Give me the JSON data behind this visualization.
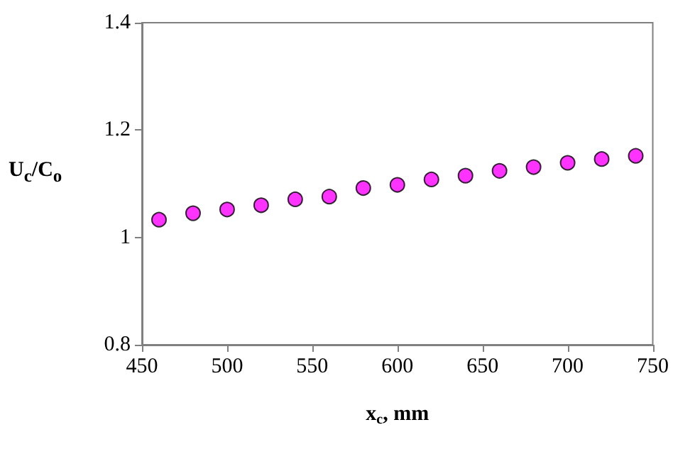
{
  "chart_data": {
    "type": "scatter",
    "xlabel": "x$_{c}$, mm",
    "ylabel": "U$_{c}$/C$_{o}$",
    "x": [
      460,
      480,
      500,
      520,
      540,
      560,
      580,
      600,
      620,
      640,
      660,
      680,
      700,
      720,
      740
    ],
    "series": [
      {
        "color": "#ff00ff",
        "values": [
          1.033,
          1.045,
          1.052,
          1.06,
          1.071,
          1.076,
          1.092,
          1.098,
          1.108,
          1.115,
          1.124,
          1.131,
          1.139,
          1.146,
          1.152
        ]
      }
    ],
    "xlim": [
      450,
      750
    ],
    "xticks": [
      450,
      500,
      550,
      600,
      650,
      700,
      750
    ],
    "ylim": [
      0.8,
      1.4
    ],
    "yticks": [
      0.8,
      1,
      1.2,
      1.4
    ],
    "grid": false,
    "marker": "circle"
  }
}
